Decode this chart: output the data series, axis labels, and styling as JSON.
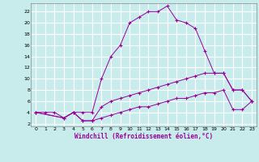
{
  "xlabel": "Windchill (Refroidissement éolien,°C)",
  "bg_color": "#c8ecec",
  "grid_color": "#ffffff",
  "line_color": "#990099",
  "xlim": [
    -0.5,
    23.5
  ],
  "ylim": [
    1.5,
    23.5
  ],
  "xticks": [
    0,
    1,
    2,
    3,
    4,
    5,
    6,
    7,
    8,
    9,
    10,
    11,
    12,
    13,
    14,
    15,
    16,
    17,
    18,
    19,
    20,
    21,
    22,
    23
  ],
  "yticks": [
    2,
    4,
    6,
    8,
    10,
    12,
    14,
    16,
    18,
    20,
    22
  ],
  "line1_x": [
    0,
    1,
    2,
    3,
    4,
    5,
    6,
    7,
    8,
    9,
    10,
    11,
    12,
    13,
    14,
    15,
    16,
    17,
    18,
    19,
    20,
    21,
    22,
    23
  ],
  "line1_y": [
    4,
    4,
    4,
    3,
    4,
    4,
    4,
    10,
    14,
    16,
    20,
    21,
    22,
    22,
    23,
    20.5,
    20,
    19,
    15,
    11,
    11,
    8,
    8,
    6
  ],
  "line2_x": [
    0,
    3,
    4,
    5,
    6,
    7,
    8,
    9,
    10,
    11,
    12,
    13,
    14,
    15,
    16,
    17,
    18,
    19,
    20,
    21,
    22,
    23
  ],
  "line2_y": [
    4,
    3,
    4,
    2.5,
    2.5,
    5,
    6,
    6.5,
    7,
    7.5,
    8,
    8.5,
    9,
    9.5,
    10,
    10.5,
    11,
    11,
    11,
    8,
    8,
    6
  ],
  "line3_x": [
    0,
    3,
    4,
    5,
    6,
    7,
    8,
    9,
    10,
    11,
    12,
    13,
    14,
    15,
    16,
    17,
    18,
    19,
    20,
    21,
    22,
    23
  ],
  "line3_y": [
    4,
    3,
    4,
    2.5,
    2.5,
    3,
    3.5,
    4,
    4.5,
    5,
    5,
    5.5,
    6,
    6.5,
    6.5,
    7,
    7.5,
    7.5,
    8,
    4.5,
    4.5,
    6
  ]
}
